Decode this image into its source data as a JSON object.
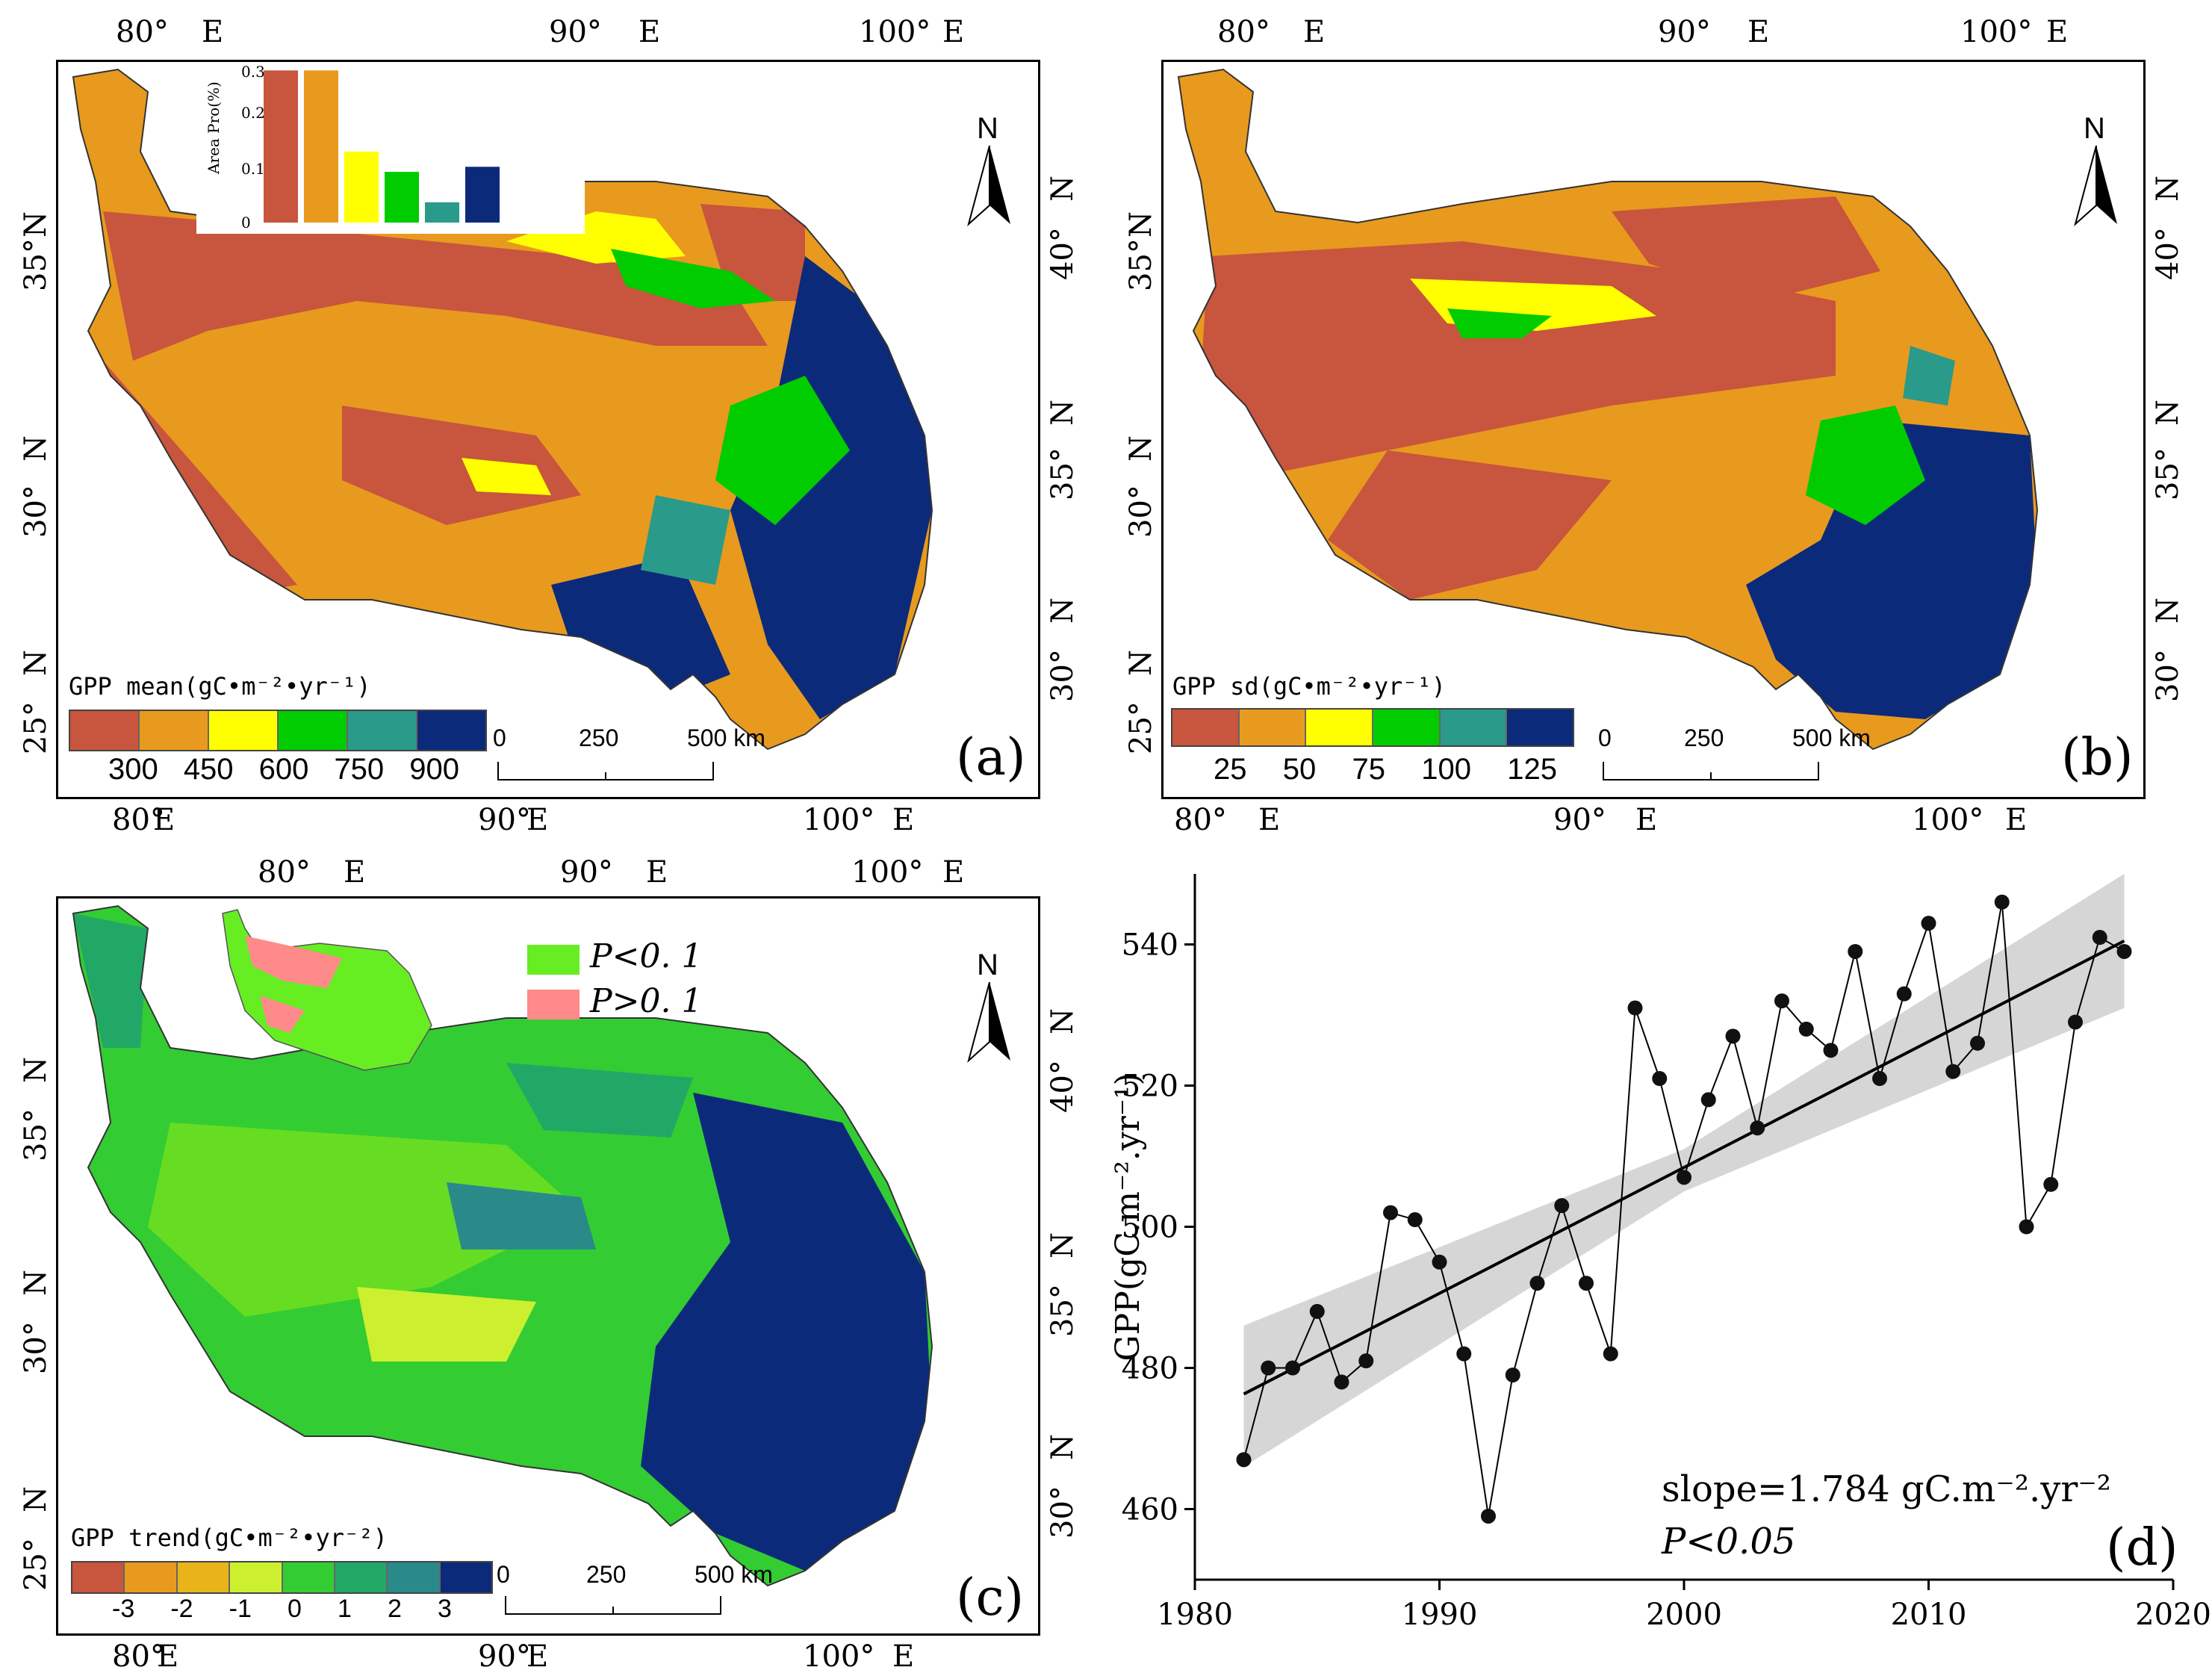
{
  "palettes": {
    "mean": [
      "#c8553d",
      "#e89a1e",
      "#ffff00",
      "#00cc00",
      "#2a9a8a",
      "#0c2a7a"
    ],
    "trend": [
      "#c8553d",
      "#e89a1e",
      "#e8b41a",
      "#ccf030",
      "#33cc33",
      "#22a866",
      "#2a8a8a",
      "#0c2a7a"
    ],
    "sig": [
      "#66ee22",
      "#ff8a8a"
    ]
  },
  "panel_a": {
    "letter": "(a)",
    "legend_title": "GPP mean(gC•m⁻²•yr⁻¹)",
    "legend_ticks": [
      "300",
      "450",
      "600",
      "750",
      "900"
    ],
    "inset": {
      "ylabel": "Area Pro(%)",
      "yticks": [
        "0.3",
        "0.2",
        "0.1",
        "0"
      ],
      "values": [
        0.3,
        0.3,
        0.14,
        0.1,
        0.04,
        0.11
      ]
    }
  },
  "panel_b": {
    "letter": "(b)",
    "legend_title": "GPP sd(gC•m⁻²•yr⁻¹)",
    "legend_ticks": [
      "25",
      "50",
      "75",
      "100",
      "125"
    ]
  },
  "panel_c": {
    "letter": "(c)",
    "legend_title": "GPP trend(gC•m⁻²•yr⁻²)",
    "legend_ticks": [
      "-3",
      "-2",
      "-1",
      "0",
      "1",
      "2",
      "3"
    ],
    "sig_labels": [
      "P<0. 1",
      "P>0. 1"
    ]
  },
  "map_labels": {
    "lon_80": "80°",
    "lon_90": "90°",
    "lon_100": "100°",
    "e": "E",
    "n": "N",
    "lat_25": "25°",
    "lat_30": "30°",
    "lat_35": "35°",
    "lat_40": "40°",
    "north": "N",
    "scale_0": "0",
    "scale_250": "250",
    "scale_500": "500 km"
  },
  "chart_data": {
    "type": "line",
    "title": "",
    "panel_letter": "(d)",
    "xlabel": "",
    "ylabel": "GPP(gC.m⁻².yr⁻¹)",
    "xlim": [
      1980,
      2020
    ],
    "ylim": [
      450,
      550
    ],
    "xticks": [
      1980,
      1990,
      2000,
      2010,
      2020
    ],
    "yticks": [
      460,
      480,
      500,
      520,
      540
    ],
    "series": [
      {
        "name": "GPP",
        "x": [
          1982,
          1983,
          1984,
          1985,
          1986,
          1987,
          1988,
          1989,
          1990,
          1991,
          1992,
          1993,
          1994,
          1995,
          1996,
          1997,
          1998,
          1999,
          2000,
          2001,
          2002,
          2003,
          2004,
          2005,
          2006,
          2007,
          2008,
          2009,
          2010,
          2011,
          2012,
          2013,
          2014,
          2015,
          2016,
          2017,
          2018
        ],
        "values": [
          467,
          480,
          480,
          488,
          478,
          481,
          502,
          501,
          495,
          482,
          459,
          479,
          492,
          503,
          492,
          482,
          531,
          521,
          507,
          518,
          527,
          514,
          532,
          528,
          525,
          539,
          521,
          533,
          543,
          522,
          526,
          546,
          500,
          506,
          529,
          541,
          539
        ]
      }
    ],
    "trend_line": {
      "x": [
        1982,
        2018
      ],
      "y": [
        476.3,
        540.5
      ]
    },
    "confidence_band": {
      "x": [
        1982,
        2000,
        2018
      ],
      "lower": [
        466,
        505,
        531
      ],
      "upper": [
        486,
        511,
        550
      ]
    },
    "annotations": [
      "slope=1.784 gC.m⁻².yr⁻²",
      "P<0.05"
    ]
  }
}
